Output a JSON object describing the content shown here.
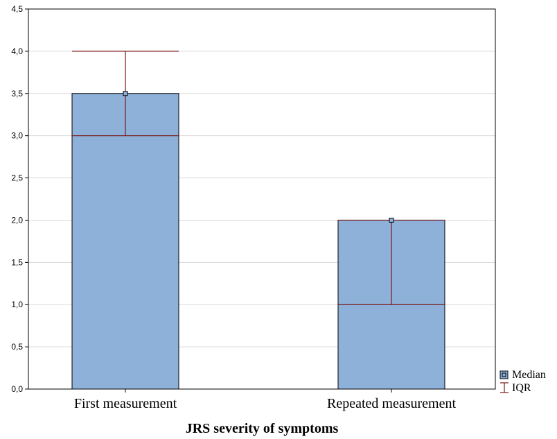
{
  "chart_data": {
    "type": "bar",
    "title": "",
    "xlabel": "JRS severity of symptoms",
    "ylabel": "",
    "categories": [
      "First measurement",
      "Repeated measurement"
    ],
    "series": [
      {
        "name": "Median",
        "values": [
          3.5,
          2.0
        ],
        "iqr_low": [
          3.0,
          1.0
        ],
        "iqr_high": [
          4.0,
          2.0
        ]
      }
    ],
    "yticks": [
      "0,0",
      "0,5",
      "1,0",
      "1,5",
      "2,0",
      "2,5",
      "3,0",
      "3,5",
      "4,0",
      "4,5"
    ],
    "ylim": [
      0,
      4.5
    ],
    "ytick_step": 0.5,
    "grid": true,
    "legend": {
      "placement": "bottom-right",
      "entries": [
        "Median",
        "IQR"
      ]
    },
    "colors": {
      "bar_fill": "#8eb1da",
      "bar_stroke": "#000000",
      "iqr": "#7a1717",
      "grid": "#d9d9d9"
    }
  }
}
